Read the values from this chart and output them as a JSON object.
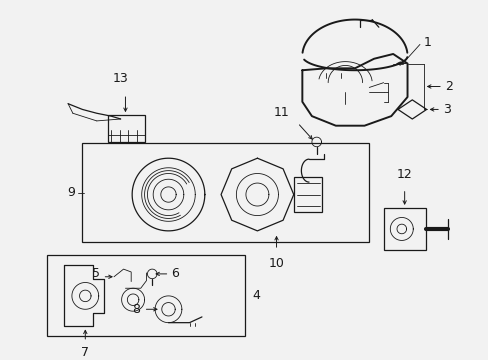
{
  "bg_color": "#f0f0f0",
  "line_color": "#1a1a1a",
  "fig_width": 4.89,
  "fig_height": 3.6,
  "dpi": 100,
  "image_b64": ""
}
